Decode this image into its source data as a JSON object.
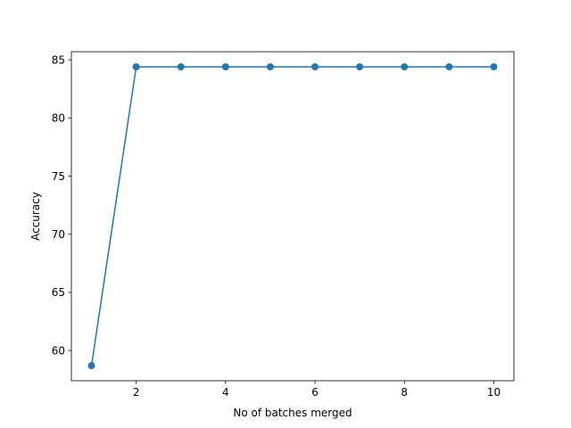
{
  "chart_data": {
    "type": "line",
    "title": "",
    "xlabel": "No of batches merged",
    "ylabel": "Accuracy",
    "xlim": [
      0.55,
      10.45
    ],
    "ylim": [
      57.4,
      85.7
    ],
    "xticks": [
      2,
      4,
      6,
      8,
      10
    ],
    "yticks": [
      60,
      65,
      70,
      75,
      80,
      85
    ],
    "grid": false,
    "legend": "none",
    "series": [
      {
        "x": [
          1,
          2,
          3,
          4,
          5,
          6,
          7,
          8,
          9,
          10
        ],
        "values": [
          58.7,
          84.4,
          84.4,
          84.4,
          84.4,
          84.4,
          84.4,
          84.4,
          84.4,
          84.4
        ],
        "color": "#1f77b4",
        "marker": "circle"
      }
    ]
  }
}
